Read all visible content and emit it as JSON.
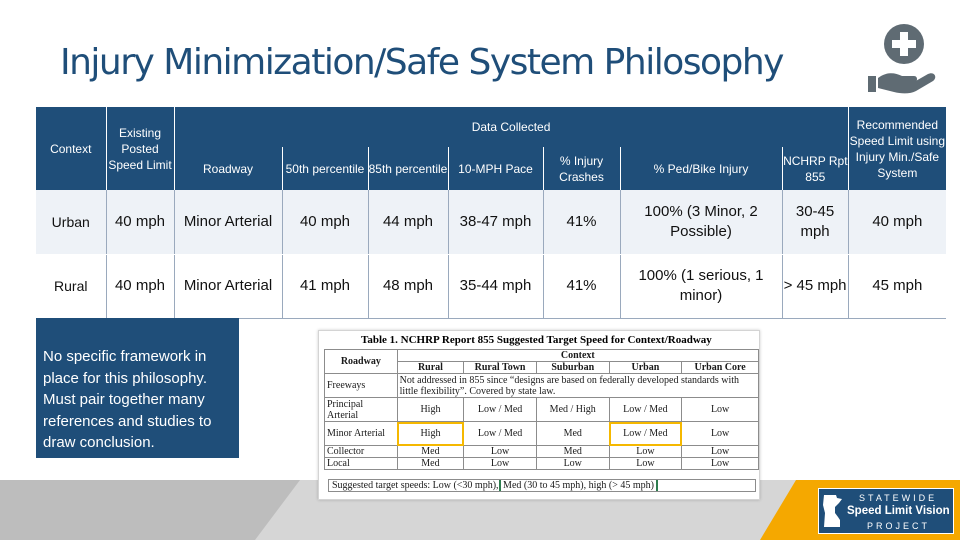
{
  "title": "Injury Minimization/Safe System Philosophy",
  "icons": {
    "logo": "hand-medical-cross-icon",
    "map": "minnesota-map-icon"
  },
  "table": {
    "header": {
      "context": "Context",
      "existing": "Existing Posted Speed Limit",
      "data_collected": "Data Collected",
      "recommended": "Recommended Speed Limit using Injury Min./Safe System",
      "columns": [
        "Roadway",
        "50th percentile",
        "85th percentile",
        "10-MPH Pace",
        "% Injury Crashes",
        "% Ped/Bike Injury",
        "NCHRP Rpt 855"
      ]
    },
    "rows": [
      {
        "context": "Urban",
        "existing": "40 mph",
        "roadway": "Minor Arterial",
        "p50": "40 mph",
        "p85": "44 mph",
        "pace": "38-47 mph",
        "injury": "41%",
        "pedbike": "100% (3 Minor, 2 Possible)",
        "nchrp": "30-45 mph",
        "recommended": "40 mph"
      },
      {
        "context": "Rural",
        "existing": "40 mph",
        "roadway": "Minor Arterial",
        "p50": "41 mph",
        "p85": "48 mph",
        "pace": "35-44 mph",
        "injury": "41%",
        "pedbike": "100% (1 serious, 1 minor)",
        "nchrp": "> 45 mph",
        "recommended": "45 mph"
      }
    ]
  },
  "note": "No specific framework in place for this philosophy. Must pair together many references and studies to draw conclusion.",
  "reference": {
    "caption": "Table 1. NCHRP Report 855 Suggested Target Speed for Context/Roadway",
    "context_label": "Context",
    "roadway_label": "Roadway",
    "columns": [
      "Rural",
      "Rural Town",
      "Suburban",
      "Urban",
      "Urban Core"
    ],
    "freeways_label": "Freeways",
    "freeways_note": "Not addressed in 855 since “designs are based on federally developed standards with little flexibility”. Covered by state law.",
    "rows": [
      {
        "label": "Principal Arterial",
        "values": [
          "High",
          "Low / Med",
          "Med / High",
          "Low / Med",
          "Low"
        ]
      },
      {
        "label": "Minor Arterial",
        "values": [
          "High",
          "Low / Med",
          "Med",
          "Low / Med",
          "Low"
        ]
      },
      {
        "label": "Collector",
        "values": [
          "Med",
          "Low",
          "Med",
          "Low",
          "Low"
        ]
      },
      {
        "label": "Local",
        "values": [
          "Med",
          "Low",
          "Low",
          "Low",
          "Low"
        ]
      }
    ],
    "footer_prefix": "Suggested target speeds: Low (<30 mph),",
    "footer_highlight": "Med (30 to 45 mph), high (> 45 mph)"
  },
  "project_logo": {
    "line1": "STATEWIDE",
    "line2": "Speed Limit Vision",
    "line3": "PROJECT"
  },
  "colors": {
    "primary": "#1f4e79",
    "accent_gold": "#f5a800",
    "highlight_green": "#2e7d4f",
    "icon_gray": "#5f6b73"
  }
}
